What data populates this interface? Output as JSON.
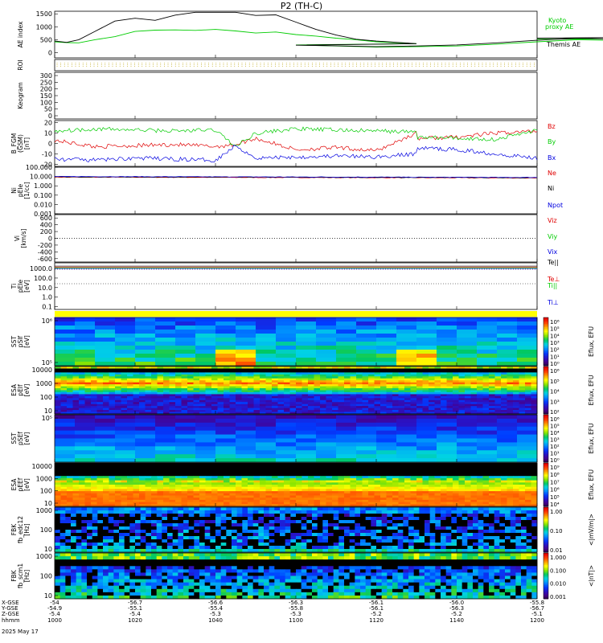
{
  "title": "P2 (TH-C)",
  "colors": {
    "black": "#000000",
    "green": "#00cc00",
    "red": "#e00000",
    "blue": "#0000e0",
    "brown": "#8b0000",
    "yellow": "#ffff00"
  },
  "chart_data": [
    {
      "type": "line",
      "id": "ae",
      "ylabel": "AE index",
      "yticks": [
        "1500",
        "1000",
        "500",
        "0"
      ],
      "ylim": [
        -200,
        1600
      ],
      "series": [
        {
          "name": "Kyoto proxy AE",
          "color": "#00cc00",
          "x": [
            1000,
            1003,
            1006,
            1010,
            1015,
            1020,
            1025,
            1030,
            1035,
            1040,
            1045,
            1050,
            1055,
            1060,
            1065,
            1070,
            1075,
            1080,
            1090,
            1100,
            1110,
            1120,
            1130,
            1140,
            1150,
            1160,
            1170,
            1180,
            1190,
            1200
          ],
          "y": [
            420,
            390,
            380,
            500,
            620,
            820,
            870,
            880,
            860,
            900,
            840,
            760,
            800,
            700,
            640,
            560,
            500,
            420,
            350,
            300,
            260,
            220,
            230,
            260,
            330,
            420,
            500,
            470,
            540,
            520
          ]
        },
        {
          "name": "Themis AE",
          "color": "#000000",
          "x": [
            1000,
            1003,
            1006,
            1010,
            1015,
            1020,
            1025,
            1030,
            1035,
            1040,
            1045,
            1050,
            1055,
            1060,
            1065,
            1070,
            1075,
            1080,
            1090,
            1100,
            1110,
            1120,
            1130,
            1140,
            1150,
            1160,
            1170,
            1180,
            1190,
            1200
          ],
          "y": [
            450,
            400,
            500,
            820,
            1220,
            1330,
            1250,
            1450,
            1560,
            1560,
            1560,
            1440,
            1460,
            1180,
            900,
            680,
            520,
            450,
            350,
            290,
            270,
            230,
            260,
            300,
            380,
            480,
            560,
            520,
            600,
            560
          ]
        }
      ]
    },
    {
      "type": "line",
      "id": "roi",
      "ylabel": "ROI"
    },
    {
      "type": "heatmap",
      "id": "keogram",
      "ylabel": "Keogram",
      "yticks": [
        "300",
        "250",
        "200",
        "150",
        "100",
        "50",
        "0"
      ]
    },
    {
      "type": "line",
      "id": "bfgm",
      "ylabel": "B_FGM",
      "ylabel2": "(GSM)",
      "ylabel3": "[nT]",
      "yticks": [
        "20",
        "10",
        "0",
        "-10",
        "-20"
      ],
      "ylim": [
        -22,
        22
      ],
      "series": [
        {
          "name": "Bz",
          "color": "#e00000",
          "x": [
            1000,
            1010,
            1020,
            1030,
            1040,
            1045,
            1050,
            1060,
            1070,
            1080,
            1090,
            1100,
            1110,
            1120,
            1130,
            1140,
            1150,
            1160,
            1170,
            1180,
            1190,
            1200
          ],
          "y": [
            3,
            -3,
            -2,
            -1,
            -3,
            -1,
            5,
            -6,
            -4,
            -7,
            10,
            12,
            8,
            0,
            5,
            6,
            10,
            12,
            -2,
            -3,
            -5,
            -3
          ]
        },
        {
          "name": "By",
          "color": "#00cc00",
          "x": [
            1000,
            1010,
            1020,
            1030,
            1040,
            1045,
            1050,
            1060,
            1070,
            1080,
            1090,
            1100,
            1110,
            1120,
            1130,
            1140,
            1150,
            1160,
            1170,
            1180,
            1190,
            1200
          ],
          "y": [
            12,
            14,
            13,
            12,
            13,
            -3,
            10,
            14,
            13,
            12,
            11,
            0,
            2,
            -2,
            6,
            5,
            4,
            13,
            12,
            13,
            14,
            11
          ]
        },
        {
          "name": "Bx",
          "color": "#0000e0",
          "x": [
            1000,
            1010,
            1020,
            1030,
            1040,
            1045,
            1050,
            1060,
            1070,
            1080,
            1090,
            1100,
            1110,
            1120,
            1130,
            1140,
            1150,
            1160,
            1170,
            1180,
            1190,
            1200
          ],
          "y": [
            -15,
            -16,
            -14,
            -15,
            -16,
            -2,
            -14,
            -13,
            -12,
            -13,
            -10,
            -5,
            -4,
            -6,
            -4,
            -6,
            -10,
            -14,
            -16,
            -15,
            -15,
            -14
          ]
        }
      ]
    },
    {
      "type": "line",
      "id": "ni",
      "ylabel": "Ni",
      "ylabel2": "pEIe",
      "ylabel3": "[1/cc]",
      "yticks": [
        "100.000",
        "10.000",
        "1.000",
        "0.100",
        "0.010",
        "0.001"
      ],
      "ylim_log": [
        -3,
        2
      ],
      "series": [
        {
          "name": "Ne",
          "color": "#e00000",
          "x": [
            1000,
            1200
          ],
          "y": [
            8.5,
            7.0
          ]
        },
        {
          "name": "Ni",
          "color": "#000000",
          "x": [
            1000,
            1200
          ],
          "y": [
            9.0,
            7.5
          ]
        },
        {
          "name": "Npot",
          "color": "#0000e0",
          "x": [
            1000,
            1200
          ],
          "y": [
            10.0,
            8.0
          ]
        }
      ]
    },
    {
      "type": "line",
      "id": "vi",
      "ylabel": "Vi",
      "ylabel3": "[km/s]",
      "yticks": [
        "600",
        "400",
        "200",
        "0",
        "-200",
        "-400",
        "-600"
      ],
      "ylim": [
        -700,
        700
      ],
      "series": [
        {
          "name": "Viz",
          "color": "#e00000",
          "x": [
            1000,
            1200
          ],
          "y": [
            0,
            0
          ]
        },
        {
          "name": "Viy",
          "color": "#00cc00",
          "x": [
            1000,
            1200
          ],
          "y": [
            0,
            0
          ]
        },
        {
          "name": "Vix",
          "color": "#0000e0",
          "x": [
            1000,
            1200
          ],
          "y": [
            0,
            0
          ]
        }
      ]
    },
    {
      "type": "line",
      "id": "ti",
      "ylabel": "Ti",
      "ylabel2": "pEIe",
      "ylabel3": "[eV]",
      "yticks": [
        "1000.0",
        "100.0",
        "10.0",
        "1.0",
        "0.1"
      ],
      "ylim_log": [
        -1.3,
        3.6
      ],
      "series": [
        {
          "name": "Te||",
          "color": "#000000",
          "x": [
            1000,
            1200
          ],
          "y": [
            1800,
            1800
          ]
        },
        {
          "name": "Te⊥",
          "color": "#e00000",
          "x": [
            1000,
            1200
          ],
          "y": [
            1600,
            1600
          ]
        },
        {
          "name": "Ti||",
          "color": "#00cc00",
          "x": [
            1000,
            1200
          ],
          "y": [
            1500,
            1500
          ]
        },
        {
          "name": "Ti⊥",
          "color": "#0000e0",
          "x": [
            1000,
            1200
          ],
          "y": [
            1400,
            1400
          ]
        }
      ]
    },
    {
      "type": "heatmap",
      "id": "sst_ion",
      "ylabel": "SST",
      "ylabel2": "pSIf",
      "ylabel3": "[eV]",
      "yticks": [
        "10⁶",
        "10⁵"
      ],
      "colorbar_label": "Eflux, EFU",
      "colorbar_ticks": [
        "10⁶",
        "10⁵",
        "10⁴",
        "10³",
        "10²",
        "10¹",
        "10⁰"
      ]
    },
    {
      "type": "heatmap",
      "id": "esa_ion",
      "ylabel": "ESA",
      "ylabel2": "pEIf",
      "ylabel3": "[eV]",
      "yticks": [
        "10000",
        "1000",
        "100",
        "10"
      ],
      "colorbar_label": "Eflux, EFU",
      "colorbar_ticks": [
        "10⁶",
        "10⁵",
        "10⁴",
        "10³",
        "10²"
      ]
    },
    {
      "type": "heatmap",
      "id": "sst_elec",
      "ylabel": "SST",
      "ylabel2": "pSEf",
      "ylabel3": "[eV]",
      "yticks": [
        "10⁵"
      ],
      "colorbar_label": "Eflux, EFU",
      "colorbar_ticks": [
        "10⁶",
        "10⁵",
        "10⁴",
        "10³",
        "10²",
        "10¹",
        "10⁰"
      ]
    },
    {
      "type": "heatmap",
      "id": "esa_elec",
      "ylabel": "ESA",
      "ylabel2": "pEEf",
      "ylabel3": "[eV]",
      "yticks": [
        "10000",
        "1000",
        "100",
        "10"
      ],
      "colorbar_label": "Eflux, EFU",
      "colorbar_ticks": [
        "10⁹",
        "10⁸",
        "10⁷",
        "10⁶",
        "10⁵",
        "10⁴"
      ]
    },
    {
      "type": "heatmap",
      "id": "fbk_e",
      "ylabel": "FBK",
      "ylabel2": "fb_edc12",
      "ylabel3": "[Hz]",
      "yticks": [
        "1000",
        "100",
        "10"
      ],
      "colorbar_label": "<|mV/m|>",
      "colorbar_ticks": [
        "1.00",
        "0.10",
        "0.01"
      ]
    },
    {
      "type": "heatmap",
      "id": "fbk_b",
      "ylabel": "FBK",
      "ylabel2": "fb_scm1",
      "ylabel3": "[Hz]",
      "yticks": [
        "1000",
        "100",
        "10"
      ],
      "colorbar_label": "<|nT|>",
      "colorbar_ticks": [
        "1.000",
        "0.100",
        "0.010",
        "0.001"
      ]
    }
  ],
  "legends": {
    "ae": [
      "Kyoto",
      "proxy AE",
      "Themis AE"
    ],
    "bfgm": [
      "Bz",
      "By",
      "Bx"
    ],
    "ni": [
      "Ne",
      "Ni",
      "Npot"
    ],
    "vi": [
      "Viz",
      "Viy",
      "Vix"
    ],
    "ti": [
      "Te||",
      "Te⊥",
      "Ti||",
      "Ti⊥"
    ]
  },
  "xaxis": {
    "row_labels": [
      "X-GSE",
      "Y-GSE",
      "Z-GSE",
      "hhmm",
      "2025 May 17"
    ],
    "ticks": [
      {
        "t": 1000,
        "rows": [
          "-54",
          "-54.9",
          "-5.4",
          "1000"
        ]
      },
      {
        "t": 1020,
        "rows": [
          "-56.7",
          "-55.1",
          "-5.4",
          "1020"
        ]
      },
      {
        "t": 1040,
        "rows": [
          "-56.6",
          "-55.4",
          "-5.3",
          "1040"
        ]
      },
      {
        "t": 1100,
        "rows": [
          "-56.3",
          "-55.8",
          "-5.3",
          "1100"
        ]
      },
      {
        "t": 1120,
        "rows": [
          "-56.1",
          "-56.1",
          "-5.2",
          "1120"
        ]
      },
      {
        "t": 1140,
        "rows": [
          "-56.0",
          "-56.3",
          "-5.2",
          "1140"
        ]
      },
      {
        "t": 1200,
        "rows": [
          "-55.8",
          "-56.7",
          "-5.1",
          "1200"
        ]
      }
    ]
  }
}
